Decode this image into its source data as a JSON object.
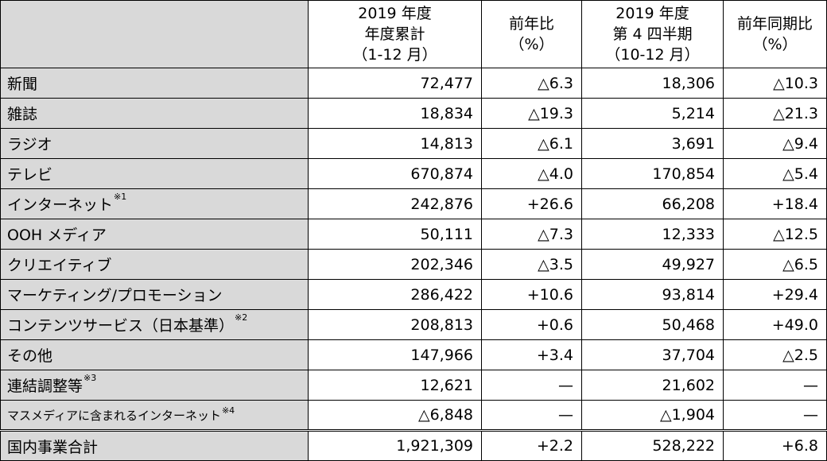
{
  "header": {
    "col1_lines": [
      "2019 年度",
      "年度累計",
      "（1-12 月）"
    ],
    "col2_lines": [
      "前年比",
      "（%）"
    ],
    "col3_lines": [
      "2019 年度",
      "第 4 四半期",
      "（10-12 月）"
    ],
    "col4_lines": [
      "前年同期比",
      "（%）"
    ]
  },
  "rows": [
    {
      "label": "新聞",
      "note": "",
      "ytd": "72,477",
      "yoy": "△6.3",
      "q4": "18,306",
      "q4_yoy": "△10.3"
    },
    {
      "label": "雑誌",
      "note": "",
      "ytd": "18,834",
      "yoy": "△19.3",
      "q4": "5,214",
      "q4_yoy": "△21.3"
    },
    {
      "label": "ラジオ",
      "note": "",
      "ytd": "14,813",
      "yoy": "△6.1",
      "q4": "3,691",
      "q4_yoy": "△9.4"
    },
    {
      "label": "テレビ",
      "note": "",
      "ytd": "670,874",
      "yoy": "△4.0",
      "q4": "170,854",
      "q4_yoy": "△5.4"
    },
    {
      "label": "インターネット",
      "note": "※1",
      "ytd": "242,876",
      "yoy": "+26.6",
      "q4": "66,208",
      "q4_yoy": "+18.4"
    },
    {
      "label": "OOH メディア",
      "note": "",
      "ytd": "50,111",
      "yoy": "△7.3",
      "q4": "12,333",
      "q4_yoy": "△12.5"
    },
    {
      "label": "クリエイティブ",
      "note": "",
      "ytd": "202,346",
      "yoy": "△3.5",
      "q4": "49,927",
      "q4_yoy": "△6.5"
    },
    {
      "label": "マーケティング/プロモーション",
      "note": "",
      "ytd": "286,422",
      "yoy": "+10.6",
      "q4": "93,814",
      "q4_yoy": "+29.4"
    },
    {
      "label": "コンテンツサービス（日本基準）",
      "note": "※2",
      "ytd": "208,813",
      "yoy": "+0.6",
      "q4": "50,468",
      "q4_yoy": "+49.0"
    },
    {
      "label": "その他",
      "note": "",
      "ytd": "147,966",
      "yoy": "+3.4",
      "q4": "37,704",
      "q4_yoy": "△2.5"
    },
    {
      "label": "連結調整等",
      "note": "※3",
      "ytd": "12,621",
      "yoy": "—",
      "q4": "21,602",
      "q4_yoy": "—"
    },
    {
      "label": "マスメディアに含まれるインターネット",
      "note": "※4",
      "ytd": "△6,848",
      "yoy": "—",
      "q4": "△1,904",
      "q4_yoy": "—"
    }
  ],
  "total": {
    "label": "国内事業合計",
    "ytd": "1,921,309",
    "yoy": "+2.2",
    "q4": "528,222",
    "q4_yoy": "+6.8"
  }
}
